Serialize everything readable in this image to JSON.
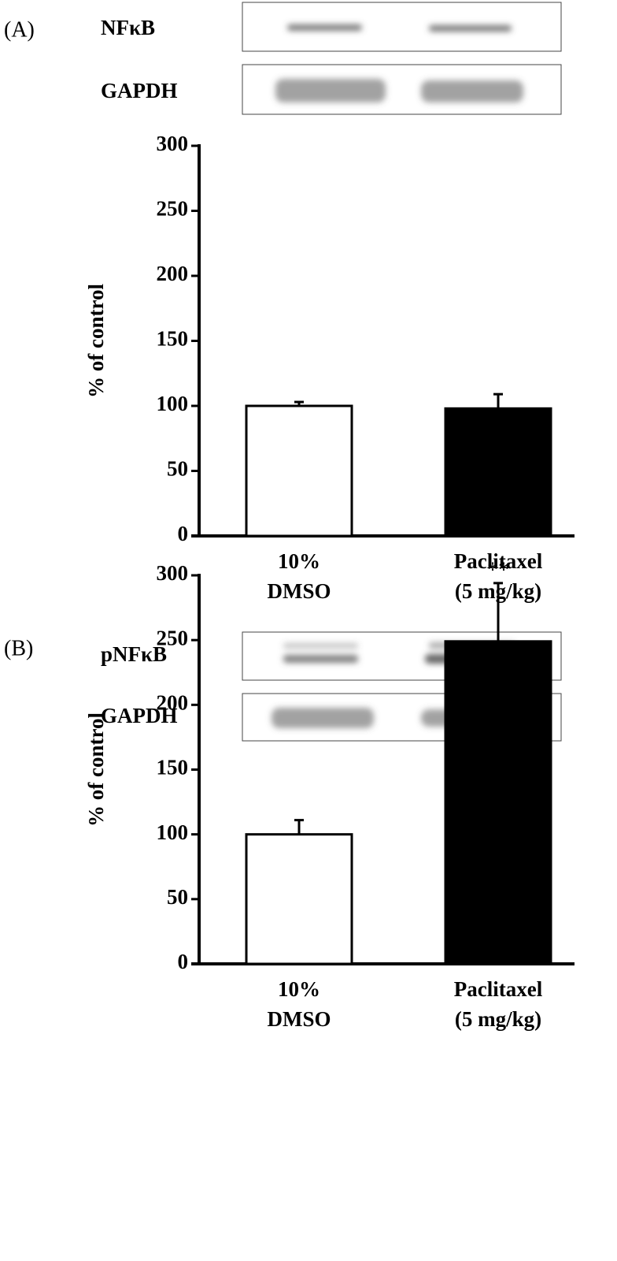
{
  "chart_data": [
    {
      "type": "bar",
      "panel": "(A)",
      "blot_labels": [
        "NFκB",
        "GAPDH"
      ],
      "ylabel": "% of control",
      "categories": [
        [
          "10%",
          "DMSO"
        ],
        [
          "Paclitaxel",
          "(5 mg/kg)"
        ]
      ],
      "values": [
        100,
        98
      ],
      "errors": [
        3,
        11
      ],
      "colors": [
        "#ffffff",
        "#000000"
      ],
      "ylim": [
        0,
        300
      ],
      "yticks": [
        0,
        50,
        100,
        150,
        200,
        250,
        300
      ],
      "annotations": []
    },
    {
      "type": "bar",
      "panel": "(B)",
      "blot_labels": [
        "pNFκB",
        "GAPDH"
      ],
      "ylabel": "% of control",
      "categories": [
        [
          "10%",
          "DMSO"
        ],
        [
          "Paclitaxel",
          "(5 mg/kg)"
        ]
      ],
      "values": [
        100,
        249
      ],
      "errors": [
        11,
        45
      ],
      "colors": [
        "#ffffff",
        "#000000"
      ],
      "ylim": [
        0,
        300
      ],
      "yticks": [
        0,
        50,
        100,
        150,
        200,
        250,
        300
      ],
      "annotations": [
        {
          "text": "**"
        }
      ]
    }
  ]
}
